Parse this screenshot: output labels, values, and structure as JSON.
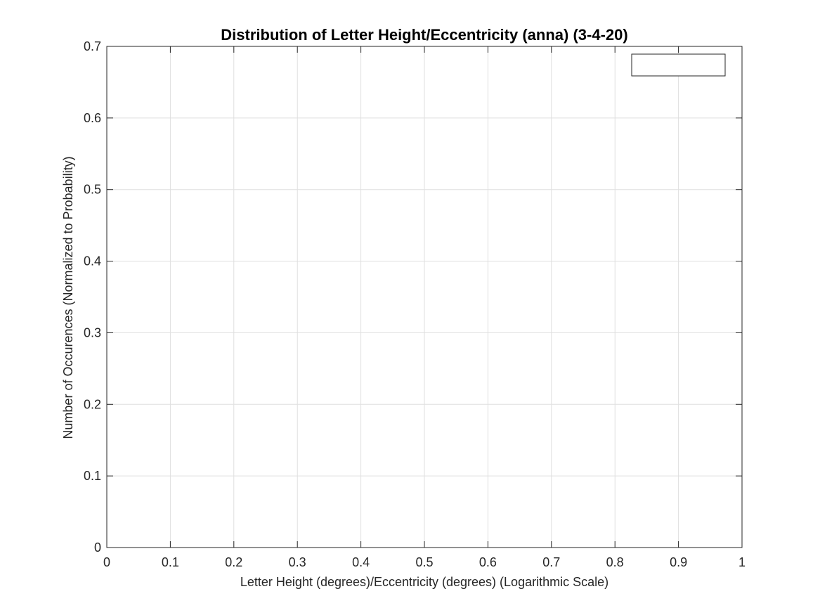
{
  "chart_data": {
    "type": "bar",
    "title": "Distribution of Letter Height/Eccentricity (anna) (3-4-20)",
    "xlabel": "Letter Height (degrees)/Eccentricity (degrees) (Logarithmic Scale)",
    "ylabel": "Number of Occurences (Normalized to Probability)",
    "xlim": [
      0,
      1
    ],
    "ylim": [
      0,
      0.7
    ],
    "x_ticks": [
      0,
      0.1,
      0.2,
      0.3,
      0.4,
      0.5,
      0.6,
      0.7,
      0.8,
      0.9,
      1
    ],
    "x_tick_labels": [
      "0",
      "0.1",
      "0.2",
      "0.3",
      "0.4",
      "0.5",
      "0.6",
      "0.7",
      "0.8",
      "0.9",
      "1"
    ],
    "y_ticks": [
      0,
      0.1,
      0.2,
      0.3,
      0.4,
      0.5,
      0.6,
      0.7
    ],
    "y_tick_labels": [
      "0",
      "0.1",
      "0.2",
      "0.3",
      "0.4",
      "0.5",
      "0.6",
      "0.7"
    ],
    "grid": true,
    "series": [],
    "legend": {
      "placement": "top-right",
      "entries": []
    },
    "colors": {
      "axis": "#262626",
      "grid": "#dfdfdf",
      "background": "#ffffff"
    }
  }
}
